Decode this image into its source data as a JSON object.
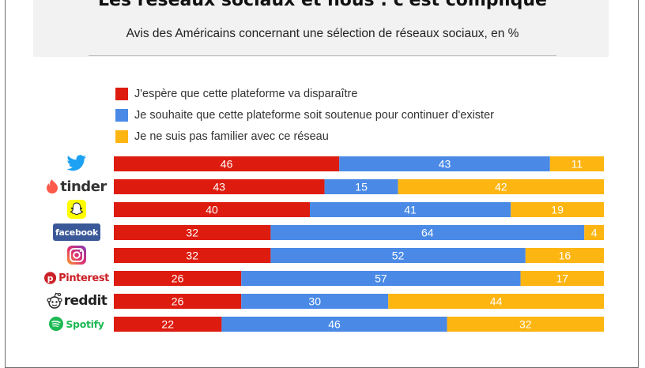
{
  "title": "Les réseaux sociaux et nous : c'est compliqué",
  "subtitle": "Avis des Américains concernant une sélection de réseaux sociaux, en %",
  "colors": {
    "red": "#dd1c0f",
    "blue": "#4a8ae6",
    "yellow": "#fdb512"
  },
  "legend": [
    {
      "label": "J'espère que cette plateforme va disparaître",
      "color": "#dd1c0f"
    },
    {
      "label": "Je souhaite que cette plateforme soit soutenue pour continuer d'exister",
      "color": "#4a8ae6"
    },
    {
      "label": "Je ne suis pas familier avec ce réseau",
      "color": "#fdb512"
    }
  ],
  "brands": {
    "tinder": "tinder",
    "facebook": "facebook",
    "pinterest": "Pinterest",
    "reddit": "reddit",
    "spotify": "Spotify"
  },
  "chart_data": {
    "type": "bar",
    "orientation": "horizontal",
    "stacked": true,
    "title": "Les réseaux sociaux et nous : c'est compliqué",
    "subtitle": "Avis des Américains concernant une sélection de réseaux sociaux, en %",
    "categories": [
      "Twitter",
      "Tinder",
      "Snapchat",
      "Facebook",
      "Instagram",
      "Pinterest",
      "Reddit",
      "Spotify"
    ],
    "series": [
      {
        "name": "J'espère que cette plateforme va disparaître",
        "values": [
          46,
          43,
          40,
          32,
          32,
          26,
          26,
          22
        ]
      },
      {
        "name": "Je souhaite que cette plateforme soit soutenue pour continuer d'exister",
        "values": [
          43,
          15,
          41,
          64,
          52,
          57,
          30,
          46
        ]
      },
      {
        "name": "Je ne suis pas familier avec ce réseau",
        "values": [
          11,
          42,
          19,
          4,
          16,
          17,
          44,
          32
        ]
      }
    ],
    "xlim": [
      0,
      100
    ],
    "unit": "%"
  }
}
